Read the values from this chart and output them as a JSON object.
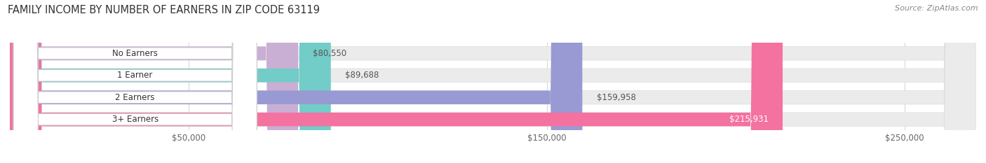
{
  "title": "FAMILY INCOME BY NUMBER OF EARNERS IN ZIP CODE 63119",
  "source": "Source: ZipAtlas.com",
  "categories": [
    "No Earners",
    "1 Earner",
    "2 Earners",
    "3+ Earners"
  ],
  "values": [
    80550,
    89688,
    159958,
    215931
  ],
  "bar_colors": [
    "#c9afd4",
    "#72ccc8",
    "#9999d4",
    "#f472a0"
  ],
  "xmin": 0,
  "xmax": 270000,
  "xticks": [
    50000,
    150000,
    250000
  ],
  "xtick_labels": [
    "$50,000",
    "$150,000",
    "$250,000"
  ],
  "title_fontsize": 10.5,
  "source_fontsize": 8,
  "label_fontsize": 8.5,
  "value_fontsize": 8.5,
  "bg_color": "#ffffff",
  "bar_bg_color": "#ebebeb",
  "bar_height": 0.62
}
